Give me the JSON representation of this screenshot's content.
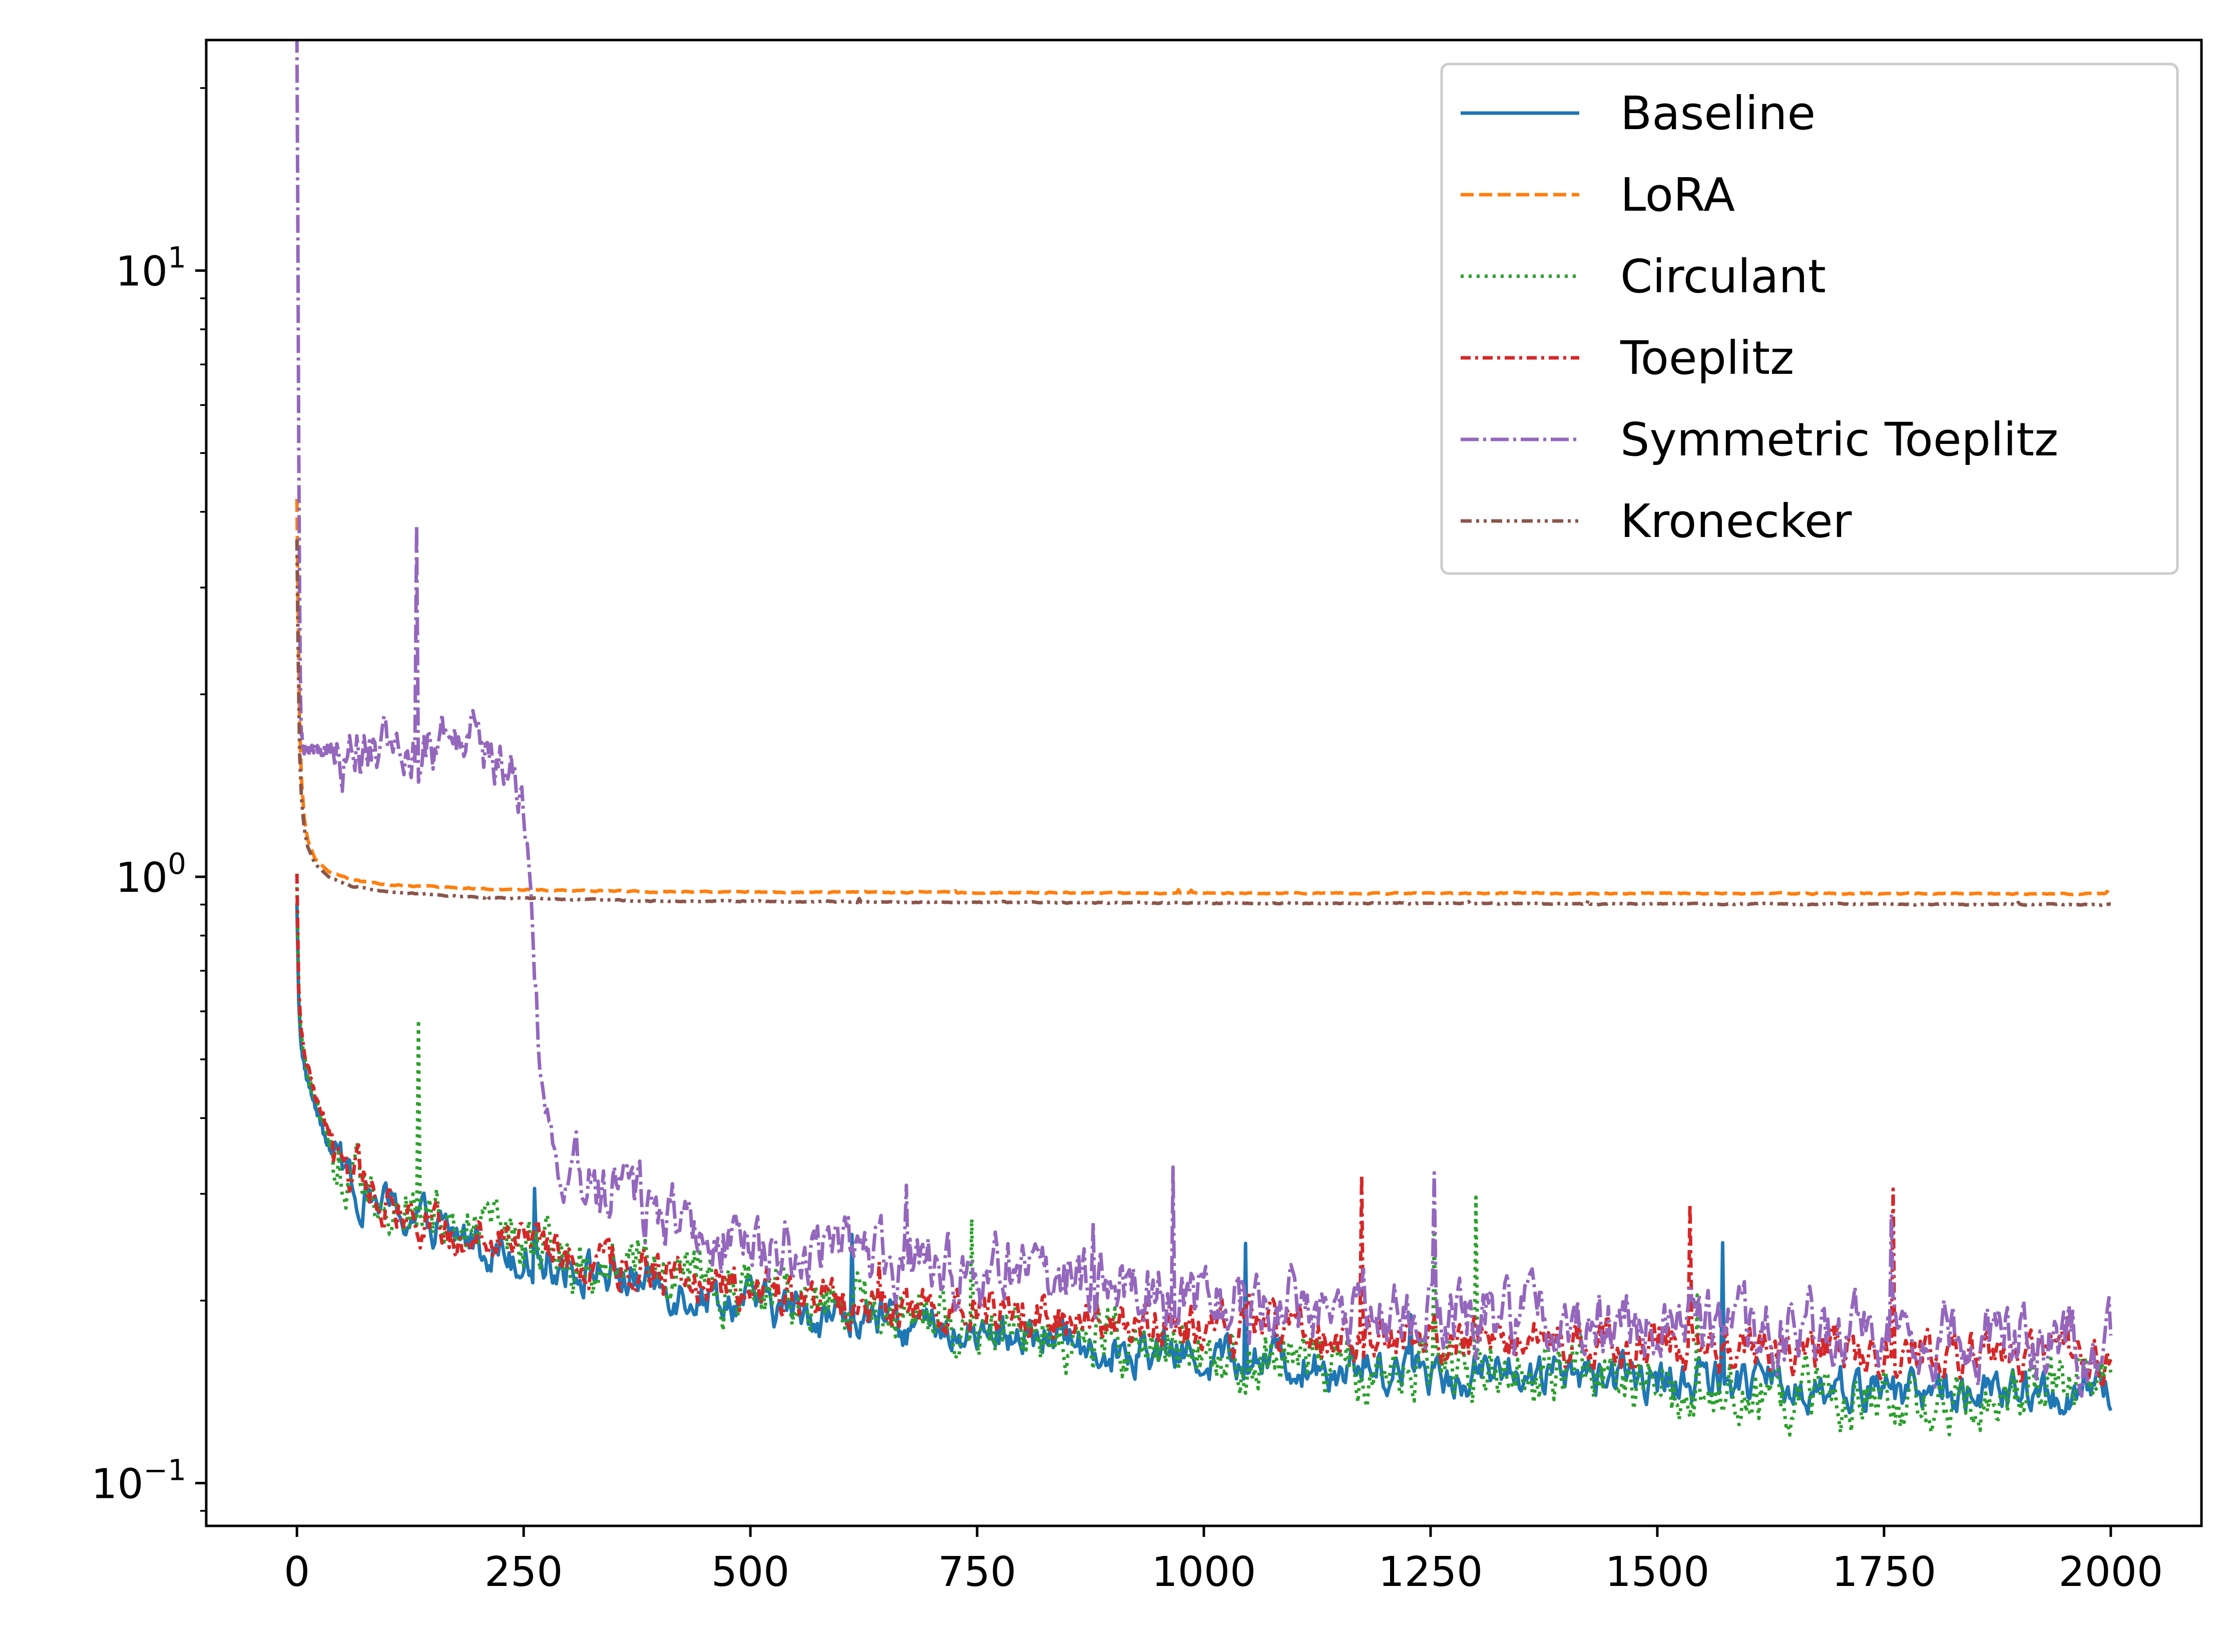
{
  "chart_data": {
    "type": "line",
    "title": "",
    "xlabel": "",
    "ylabel": "",
    "xlim": [
      -100,
      2100
    ],
    "ylim": [
      0.085,
      24
    ],
    "y_scale": "log",
    "grid": false,
    "legend_position": "top-right",
    "x_ticks": [
      0,
      250,
      500,
      750,
      1000,
      1250,
      1500,
      1750,
      2000
    ],
    "y_ticks": [
      {
        "value": 0.1,
        "base": "10",
        "exp": "−1"
      },
      {
        "value": 1,
        "base": "10",
        "exp": "0"
      },
      {
        "value": 10,
        "base": "10",
        "exp": "1"
      }
    ],
    "x_tick_labels": [
      "0",
      "250",
      "500",
      "750",
      "1000",
      "1250",
      "1500",
      "1750",
      "2000"
    ],
    "series": [
      {
        "name": "Baseline",
        "color": "#1f77b4",
        "style": "solid",
        "x": [
          0,
          2,
          5,
          10,
          20,
          35,
          50,
          75,
          100,
          150,
          200,
          250,
          300,
          400,
          500,
          600,
          700,
          800,
          900,
          1000,
          1100,
          1200,
          1300,
          1400,
          1500,
          1600,
          1700,
          1800,
          1900,
          2000
        ],
        "y": [
          0.9,
          0.62,
          0.52,
          0.47,
          0.42,
          0.36,
          0.33,
          0.3,
          0.285,
          0.265,
          0.25,
          0.238,
          0.228,
          0.212,
          0.198,
          0.188,
          0.18,
          0.175,
          0.168,
          0.162,
          0.158,
          0.155,
          0.152,
          0.15,
          0.148,
          0.146,
          0.144,
          0.142,
          0.14,
          0.14
        ],
        "noise": 0.1
      },
      {
        "name": "LoRA",
        "color": "#ff7f0e",
        "style": "dashed",
        "x": [
          0,
          1,
          2,
          3,
          5,
          8,
          12,
          20,
          35,
          60,
          100,
          200,
          400,
          1000,
          2000
        ],
        "y": [
          4.2,
          3.0,
          2.3,
          1.8,
          1.45,
          1.25,
          1.15,
          1.07,
          1.02,
          0.99,
          0.97,
          0.955,
          0.945,
          0.94,
          0.938
        ],
        "noise": 0.003
      },
      {
        "name": "Circulant",
        "color": "#2ca02c",
        "style": "dotted",
        "x": [
          0,
          2,
          5,
          10,
          20,
          35,
          50,
          75,
          100,
          150,
          200,
          250,
          300,
          400,
          500,
          600,
          700,
          800,
          900,
          1000,
          1100,
          1200,
          1300,
          1400,
          1500,
          1600,
          1700,
          1800,
          1900,
          2000
        ],
        "y": [
          0.95,
          0.65,
          0.54,
          0.48,
          0.43,
          0.37,
          0.34,
          0.31,
          0.295,
          0.28,
          0.262,
          0.248,
          0.236,
          0.22,
          0.205,
          0.195,
          0.188,
          0.18,
          0.172,
          0.165,
          0.16,
          0.156,
          0.153,
          0.15,
          0.146,
          0.142,
          0.138,
          0.135,
          0.14,
          0.155
        ],
        "noise": 0.14
      },
      {
        "name": "Toeplitz",
        "color": "#d62728",
        "style": "dashdot-short",
        "x": [
          0,
          2,
          5,
          10,
          20,
          35,
          50,
          75,
          100,
          150,
          200,
          250,
          300,
          400,
          500,
          600,
          700,
          800,
          900,
          1000,
          1100,
          1200,
          1300,
          1400,
          1500,
          1600,
          1700,
          1800,
          1900,
          2000
        ],
        "y": [
          1.0,
          0.66,
          0.55,
          0.5,
          0.44,
          0.38,
          0.34,
          0.31,
          0.29,
          0.272,
          0.258,
          0.248,
          0.238,
          0.222,
          0.21,
          0.2,
          0.195,
          0.19,
          0.185,
          0.18,
          0.178,
          0.175,
          0.172,
          0.17,
          0.168,
          0.166,
          0.165,
          0.163,
          0.162,
          0.16
        ],
        "noise": 0.11
      },
      {
        "name": "Symmetric Toeplitz",
        "color": "#9467bd",
        "style": "dashdot",
        "x": [
          0,
          1,
          2,
          3,
          4,
          5,
          8,
          15,
          50,
          100,
          150,
          200,
          215,
          225,
          235,
          245,
          252,
          256,
          260,
          265,
          270,
          275,
          280,
          290,
          300,
          320,
          350,
          400,
          500,
          600,
          700,
          800,
          900,
          1000,
          1100,
          1200,
          1300,
          1400,
          1500,
          1600,
          1700,
          1800,
          1900,
          2000
        ],
        "y": [
          24,
          12,
          5.0,
          2.8,
          2.0,
          1.7,
          1.63,
          1.62,
          1.62,
          1.62,
          1.62,
          1.62,
          1.6,
          1.55,
          1.45,
          1.4,
          1.3,
          1.0,
          0.72,
          0.55,
          0.42,
          0.38,
          0.36,
          0.34,
          0.32,
          0.31,
          0.3,
          0.28,
          0.255,
          0.24,
          0.23,
          0.22,
          0.21,
          0.2,
          0.195,
          0.19,
          0.188,
          0.185,
          0.18,
          0.178,
          0.176,
          0.175,
          0.172,
          0.17
        ],
        "noise": 0.16
      },
      {
        "name": "Kronecker",
        "color": "#8c564b",
        "style": "dashdotdot",
        "x": [
          0,
          1,
          2,
          3,
          5,
          8,
          12,
          20,
          35,
          60,
          100,
          200,
          400,
          1000,
          2000
        ],
        "y": [
          3.6,
          2.6,
          2.0,
          1.6,
          1.35,
          1.2,
          1.12,
          1.05,
          1.0,
          0.965,
          0.945,
          0.925,
          0.912,
          0.905,
          0.9
        ],
        "noise": 0.003
      }
    ]
  }
}
